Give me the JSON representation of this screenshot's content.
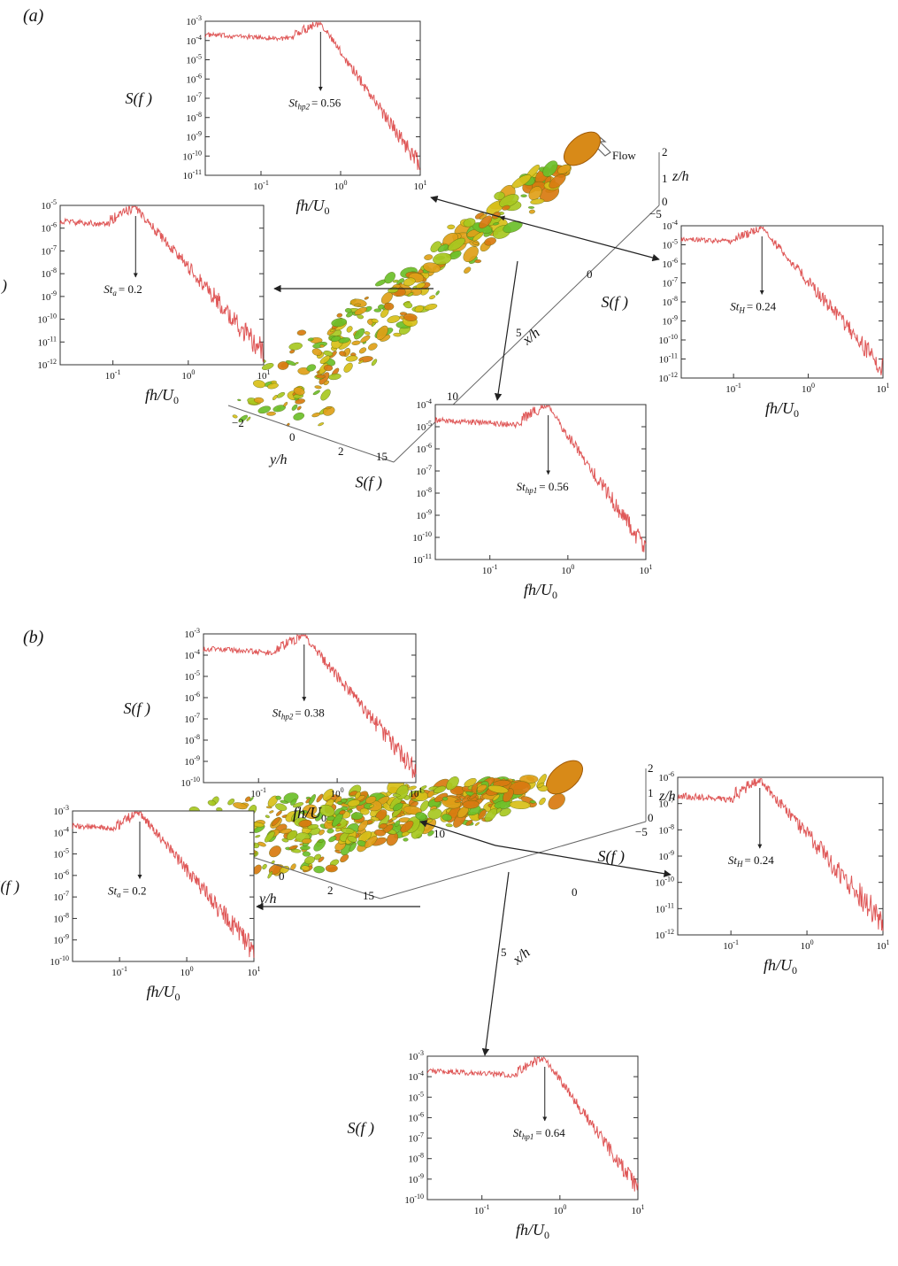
{
  "panels": [
    {
      "tag": "(a)",
      "flow_label": "Flow",
      "axes3d": {
        "x_label": "x/h",
        "x_ticks": [
          "0",
          "5",
          "10",
          "15"
        ],
        "y_label": "y/h",
        "y_ticks": [
          "−2",
          "0",
          "2"
        ],
        "z_label": "z/h",
        "z_ticks": [
          "0",
          "1",
          "2"
        ],
        "z_extra_tick": "−5"
      },
      "spectra": [
        {
          "id": "hp2",
          "st_label": "St",
          "st_sub": "hp2",
          "st_value": "= 0.56",
          "peak": 0.56,
          "ymin_exp": -11,
          "ymax_exp": -3,
          "y_labels": [
            "-3",
            "-4",
            "-5",
            "-6",
            "-7",
            "-8",
            "-9",
            "-10",
            "-11"
          ],
          "x_labels": [
            "-1",
            "0",
            "1"
          ],
          "ylabel": "S(f )",
          "xlabel": "fh/U",
          "xlabel_sub": "0"
        },
        {
          "id": "a",
          "st_label": "St",
          "st_sub": "a",
          "st_value": "= 0.2",
          "peak": 0.2,
          "ymin_exp": -12,
          "ymax_exp": -5,
          "y_labels": [
            "-5",
            "-6",
            "-7",
            "-8",
            "-9",
            "-10",
            "-11",
            "-12"
          ],
          "x_labels": [
            "-1",
            "0",
            "1"
          ],
          "ylabel": "S(f )",
          "xlabel": "fh/U",
          "xlabel_sub": "0"
        },
        {
          "id": "H",
          "st_label": "St",
          "st_sub": "H",
          "st_value": "= 0.24",
          "peak": 0.24,
          "ymin_exp": -12,
          "ymax_exp": -4,
          "y_labels": [
            "-4",
            "-5",
            "-6",
            "-7",
            "-8",
            "-9",
            "-10",
            "-11",
            "-12"
          ],
          "x_labels": [
            "-1",
            "0",
            "1"
          ],
          "ylabel": "S(f )",
          "xlabel": "fh/U",
          "xlabel_sub": "0"
        },
        {
          "id": "hp1",
          "st_label": "St",
          "st_sub": "hp1",
          "st_value": "= 0.56",
          "peak": 0.56,
          "ymin_exp": -11,
          "ymax_exp": -4,
          "y_labels": [
            "-4",
            "-5",
            "-6",
            "-7",
            "-8",
            "-9",
            "-10",
            "-11"
          ],
          "x_labels": [
            "-1",
            "0",
            "1"
          ],
          "ylabel": "S(f )",
          "xlabel": "fh/U",
          "xlabel_sub": "0"
        }
      ]
    },
    {
      "tag": "(b)",
      "flow_label": "",
      "axes3d": {
        "x_label": "x/h",
        "x_ticks": [
          "0",
          "5",
          "10",
          "15"
        ],
        "y_label": "y/h",
        "y_ticks": [
          "−2",
          "0",
          "2"
        ],
        "z_label": "z/h",
        "z_ticks": [
          "0",
          "1",
          "2"
        ],
        "z_extra_tick": "−5"
      },
      "spectra": [
        {
          "id": "hp2",
          "st_label": "St",
          "st_sub": "hp2",
          "st_value": "= 0.38",
          "peak": 0.38,
          "ymin_exp": -10,
          "ymax_exp": -3,
          "y_labels": [
            "-3",
            "-4",
            "-5",
            "-6",
            "-7",
            "-8",
            "-9",
            "-10"
          ],
          "x_labels": [
            "-1",
            "0",
            "1"
          ],
          "ylabel": "S(f )",
          "xlabel": "fh/U",
          "xlabel_sub": "0"
        },
        {
          "id": "a",
          "st_label": "St",
          "st_sub": "a",
          "st_value": "= 0.2",
          "peak": 0.2,
          "ymin_exp": -10,
          "ymax_exp": -3,
          "y_labels": [
            "-3",
            "-4",
            "-5",
            "-6",
            "-7",
            "-8",
            "-9",
            "-10"
          ],
          "x_labels": [
            "-1",
            "0",
            "1"
          ],
          "ylabel": "S(f )",
          "xlabel": "fh/U",
          "xlabel_sub": "0"
        },
        {
          "id": "H",
          "st_label": "St",
          "st_sub": "H",
          "st_value": "= 0.24",
          "peak": 0.24,
          "ymin_exp": -12,
          "ymax_exp": -6,
          "y_labels": [
            "-6",
            "-7",
            "-8",
            "-9",
            "-10",
            "-11",
            "-12"
          ],
          "x_labels": [
            "-1",
            "0",
            "1"
          ],
          "ylabel": "S(f )",
          "xlabel": "fh/U",
          "xlabel_sub": "0"
        },
        {
          "id": "hp1",
          "st_label": "St",
          "st_sub": "hp1",
          "st_value": "= 0.64",
          "peak": 0.64,
          "ymin_exp": -10,
          "ymax_exp": -3,
          "y_labels": [
            "-3",
            "-4",
            "-5",
            "-6",
            "-7",
            "-8",
            "-9",
            "-10"
          ],
          "x_labels": [
            "-1",
            "0",
            "1"
          ],
          "ylabel": "S(f )",
          "xlabel": "fh/U",
          "xlabel_sub": "0"
        }
      ]
    }
  ],
  "colors": {
    "spectrum": "#d42020",
    "spectrum_light": "#f0a0a0",
    "arrow": "#222222",
    "vortex_green": "#6cc02a",
    "vortex_yellow": "#d8c018",
    "vortex_orange": "#d87a10"
  }
}
